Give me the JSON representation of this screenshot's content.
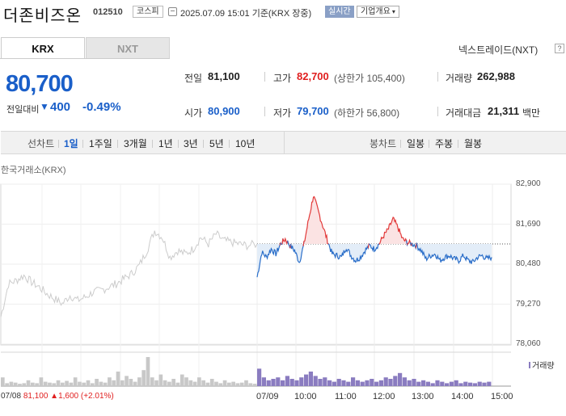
{
  "header": {
    "stock_name": "더존비즈온",
    "stock_code": "012510",
    "market": "코스피",
    "timestamp": "2025.07.09 15:01 기준(KRX 장중)",
    "realtime_label": "실시간",
    "company_button": "기업개요",
    "icons": {
      "clock": "clock-icon",
      "caret": "caret-down-icon"
    }
  },
  "tabs": [
    {
      "label": "KRX",
      "active": true
    },
    {
      "label": "NXT",
      "active": false
    }
  ],
  "nxt_link": "넥스트레이드(NXT)",
  "help_label": "?",
  "quote": {
    "price": "80,700",
    "change_label": "전일대비",
    "change_arrow": "▼",
    "change_value": "400",
    "change_pct": "-0.49%"
  },
  "stats": {
    "prev_close": {
      "label": "전일",
      "value": "81,100"
    },
    "high": {
      "label": "고가",
      "value": "82,700",
      "note": "(상한가 105,400)"
    },
    "volume": {
      "label": "거래량",
      "value": "262,988"
    },
    "open": {
      "label": "시가",
      "value": "80,900"
    },
    "low": {
      "label": "저가",
      "value": "79,700",
      "note": "(하한가 56,800)"
    },
    "amount": {
      "label": "거래대금",
      "value": "21,311",
      "unit": "백만"
    }
  },
  "period_bar": {
    "line_label": "선차트",
    "line_items": [
      {
        "label": "1일",
        "active": true
      },
      {
        "label": "1주일",
        "active": false
      },
      {
        "label": "3개월",
        "active": false
      },
      {
        "label": "1년",
        "active": false
      },
      {
        "label": "3년",
        "active": false
      },
      {
        "label": "5년",
        "active": false
      },
      {
        "label": "10년",
        "active": false
      }
    ],
    "candle_label": "봉차트",
    "candle_items": [
      {
        "label": "일봉"
      },
      {
        "label": "주봉"
      },
      {
        "label": "월봉"
      }
    ]
  },
  "chart_data": {
    "type": "line",
    "title": "한국거래소(KRX)",
    "y_ticks": [
      "82,900",
      "81,690",
      "80,480",
      "79,270",
      "78,060"
    ],
    "ylim": [
      78060,
      82900
    ],
    "reference_price": 81100,
    "x_ticks": [
      "07/09",
      "10:00",
      "11:00",
      "12:00",
      "13:00",
      "14:00",
      "15:00"
    ],
    "prev_day_label": "07/08",
    "prev_day_info": "81,100 ▲1,600 (+2.01%)",
    "volume_label": "거래량",
    "series": [
      {
        "day": "07/08",
        "color": "#cccccc",
        "x": [
          0,
          0.03,
          0.06,
          0.09,
          0.12,
          0.15,
          0.18,
          0.21,
          0.24,
          0.27,
          0.3,
          0.33,
          0.36,
          0.39,
          0.42,
          0.45,
          0.48,
          0.51,
          0.54,
          0.57,
          0.6,
          0.63,
          0.66,
          0.69,
          0.72,
          0.75,
          0.78,
          0.81,
          0.84,
          0.87,
          0.9,
          0.93,
          0.96,
          1.0
        ],
        "y": [
          78900,
          79900,
          80000,
          80150,
          79950,
          79800,
          79600,
          79450,
          79300,
          79550,
          79400,
          79500,
          79650,
          79700,
          79800,
          79900,
          80050,
          80200,
          80450,
          80900,
          81500,
          81300,
          80700,
          80900,
          80800,
          80950,
          81300,
          81100,
          81400,
          81200,
          81150,
          81100,
          81050,
          81100
        ]
      },
      {
        "day": "07/09",
        "colors": {
          "above": "#e23a3a",
          "below": "#2a6ec9"
        },
        "x": [
          0,
          0.02,
          0.04,
          0.06,
          0.08,
          0.1,
          0.12,
          0.14,
          0.16,
          0.18,
          0.2,
          0.22,
          0.24,
          0.26,
          0.28,
          0.3,
          0.32,
          0.34,
          0.36,
          0.38,
          0.4,
          0.42,
          0.44,
          0.46,
          0.48,
          0.5,
          0.52,
          0.54,
          0.56,
          0.58,
          0.6,
          0.62,
          0.64,
          0.66,
          0.68,
          0.7,
          0.72,
          0.74,
          0.76,
          0.78,
          0.8,
          0.82,
          0.84,
          0.86,
          0.88,
          0.9,
          0.92,
          0.94,
          0.96,
          0.98,
          1.0
        ],
        "y": [
          80100,
          80850,
          80700,
          80950,
          80800,
          81100,
          81250,
          81050,
          80900,
          80550,
          81100,
          81850,
          82550,
          82100,
          81650,
          81200,
          80800,
          80750,
          80700,
          81000,
          80750,
          80600,
          80700,
          80900,
          81050,
          80950,
          81100,
          81350,
          81550,
          81850,
          81600,
          81250,
          81150,
          81100,
          81050,
          80900,
          80650,
          80750,
          80800,
          80600,
          80700,
          80750,
          80650,
          80600,
          80750,
          80600,
          80550,
          80700,
          80750,
          80650,
          80700
        ]
      }
    ],
    "volume": {
      "day1": [
        0.3,
        0.1,
        0.15,
        0.12,
        0.08,
        0.1,
        0.2,
        0.12,
        0.1,
        0.3,
        0.15,
        0.12,
        0.1,
        0.2,
        0.12,
        0.18,
        0.12,
        0.3,
        0.15,
        0.12,
        0.2,
        0.1,
        0.25,
        0.15,
        0.12,
        0.3,
        0.2,
        0.5,
        0.2,
        0.35,
        0.25,
        0.15,
        0.3,
        0.55,
        1.0,
        0.3,
        0.2,
        0.4,
        0.2,
        0.15,
        0.25,
        0.12,
        0.4,
        0.3,
        0.2,
        0.15,
        0.3,
        0.2,
        0.12,
        0.25,
        0.15,
        0.1,
        0.2,
        0.12,
        0.15,
        0.1,
        0.12,
        0.2,
        0.1,
        0.08
      ],
      "day2": [
        0.6,
        0.3,
        0.2,
        0.25,
        0.3,
        0.2,
        0.35,
        0.25,
        0.2,
        0.3,
        0.4,
        0.5,
        0.35,
        0.25,
        0.3,
        0.2,
        0.15,
        0.25,
        0.2,
        0.15,
        0.3,
        0.2,
        0.15,
        0.2,
        0.25,
        0.15,
        0.2,
        0.3,
        0.25,
        0.35,
        0.45,
        0.3,
        0.2,
        0.25,
        0.15,
        0.2,
        0.15,
        0.1,
        0.2,
        0.15,
        0.1,
        0.15,
        0.2,
        0.1,
        0.15,
        0.12,
        0.1,
        0.15,
        0.12,
        0.15
      ]
    }
  }
}
